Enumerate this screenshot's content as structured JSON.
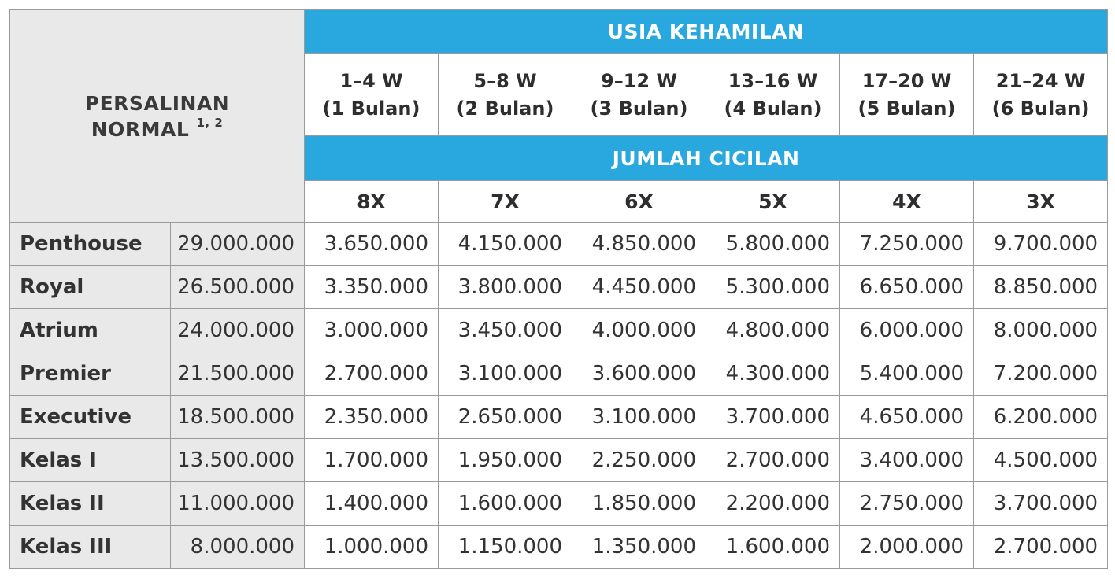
{
  "corner": {
    "line1": "PERSALINAN",
    "line2": "NORMAL",
    "footnote": "1, 2"
  },
  "header": {
    "age_title": "USIA KEHAMILAN",
    "count_title": "JUMLAH CICILAN",
    "ages": [
      {
        "weeks": "1–4 W",
        "months": "(1 Bulan)"
      },
      {
        "weeks": "5–8 W",
        "months": "(2 Bulan)"
      },
      {
        "weeks": "9–12 W",
        "months": "(3 Bulan)"
      },
      {
        "weeks": "13–16 W",
        "months": "(4 Bulan)"
      },
      {
        "weeks": "17–20 W",
        "months": "(5 Bulan)"
      },
      {
        "weeks": "21–24 W",
        "months": "(6 Bulan)"
      }
    ],
    "counts": [
      "8X",
      "7X",
      "6X",
      "5X",
      "4X",
      "3X"
    ]
  },
  "rows": [
    {
      "name": "Penthouse",
      "price": "29.000.000",
      "values": [
        "3.650.000",
        "4.150.000",
        "4.850.000",
        "5.800.000",
        "7.250.000",
        "9.700.000"
      ]
    },
    {
      "name": "Royal",
      "price": "26.500.000",
      "values": [
        "3.350.000",
        "3.800.000",
        "4.450.000",
        "5.300.000",
        "6.650.000",
        "8.850.000"
      ]
    },
    {
      "name": "Atrium",
      "price": "24.000.000",
      "values": [
        "3.000.000",
        "3.450.000",
        "4.000.000",
        "4.800.000",
        "6.000.000",
        "8.000.000"
      ]
    },
    {
      "name": "Premier",
      "price": "21.500.000",
      "values": [
        "2.700.000",
        "3.100.000",
        "3.600.000",
        "4.300.000",
        "5.400.000",
        "7.200.000"
      ]
    },
    {
      "name": "Executive",
      "price": "18.500.000",
      "values": [
        "2.350.000",
        "2.650.000",
        "3.100.000",
        "3.700.000",
        "4.650.000",
        "6.200.000"
      ]
    },
    {
      "name": "Kelas I",
      "price": "13.500.000",
      "values": [
        "1.700.000",
        "1.950.000",
        "2.250.000",
        "2.700.000",
        "3.400.000",
        "4.500.000"
      ]
    },
    {
      "name": "Kelas II",
      "price": "11.000.000",
      "values": [
        "1.400.000",
        "1.600.000",
        "1.850.000",
        "2.200.000",
        "2.750.000",
        "3.700.000"
      ]
    },
    {
      "name": "Kelas III",
      "price": "8.000.000",
      "values": [
        "1.000.000",
        "1.150.000",
        "1.350.000",
        "1.600.000",
        "2.000.000",
        "2.700.000"
      ]
    }
  ],
  "colors": {
    "header_blue": "#29a8e0",
    "label_gray": "#e9e9e9",
    "border": "#9a9a9a"
  }
}
